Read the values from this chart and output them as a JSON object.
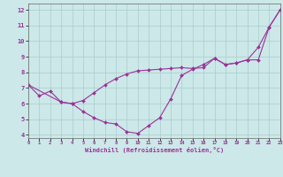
{
  "line1_x": [
    0,
    1,
    2,
    3,
    4,
    5,
    6,
    7,
    8,
    9,
    10,
    11,
    12,
    13,
    14,
    15,
    16,
    17,
    18,
    19,
    20,
    21,
    22,
    23
  ],
  "line1_y": [
    7.2,
    6.5,
    6.8,
    6.1,
    6.0,
    5.5,
    5.1,
    4.8,
    4.7,
    4.2,
    4.1,
    4.6,
    5.1,
    6.3,
    7.8,
    8.2,
    8.5,
    8.9,
    8.5,
    8.6,
    8.8,
    9.6,
    10.9,
    12.0
  ],
  "line2_x": [
    0,
    3,
    4,
    5,
    6,
    7,
    8,
    9,
    10,
    11,
    12,
    13,
    14,
    15,
    16,
    17,
    18,
    19,
    20,
    21,
    22,
    23
  ],
  "line2_y": [
    7.2,
    6.1,
    6.0,
    6.2,
    6.7,
    7.2,
    7.6,
    7.9,
    8.1,
    8.15,
    8.2,
    8.25,
    8.3,
    8.25,
    8.3,
    8.9,
    8.5,
    8.6,
    8.8,
    8.8,
    10.9,
    12.0
  ],
  "line_color": "#993399",
  "bg_color": "#cce8e8",
  "grid_color": "#aacccc",
  "xlabel": "Windchill (Refroidissement éolien,°C)",
  "xlim": [
    0,
    23
  ],
  "ylim": [
    3.8,
    12.4
  ],
  "yticks": [
    4,
    5,
    6,
    7,
    8,
    9,
    10,
    11,
    12
  ],
  "xticks": [
    0,
    1,
    2,
    3,
    4,
    5,
    6,
    7,
    8,
    9,
    10,
    11,
    12,
    13,
    14,
    15,
    16,
    17,
    18,
    19,
    20,
    21,
    22,
    23
  ]
}
